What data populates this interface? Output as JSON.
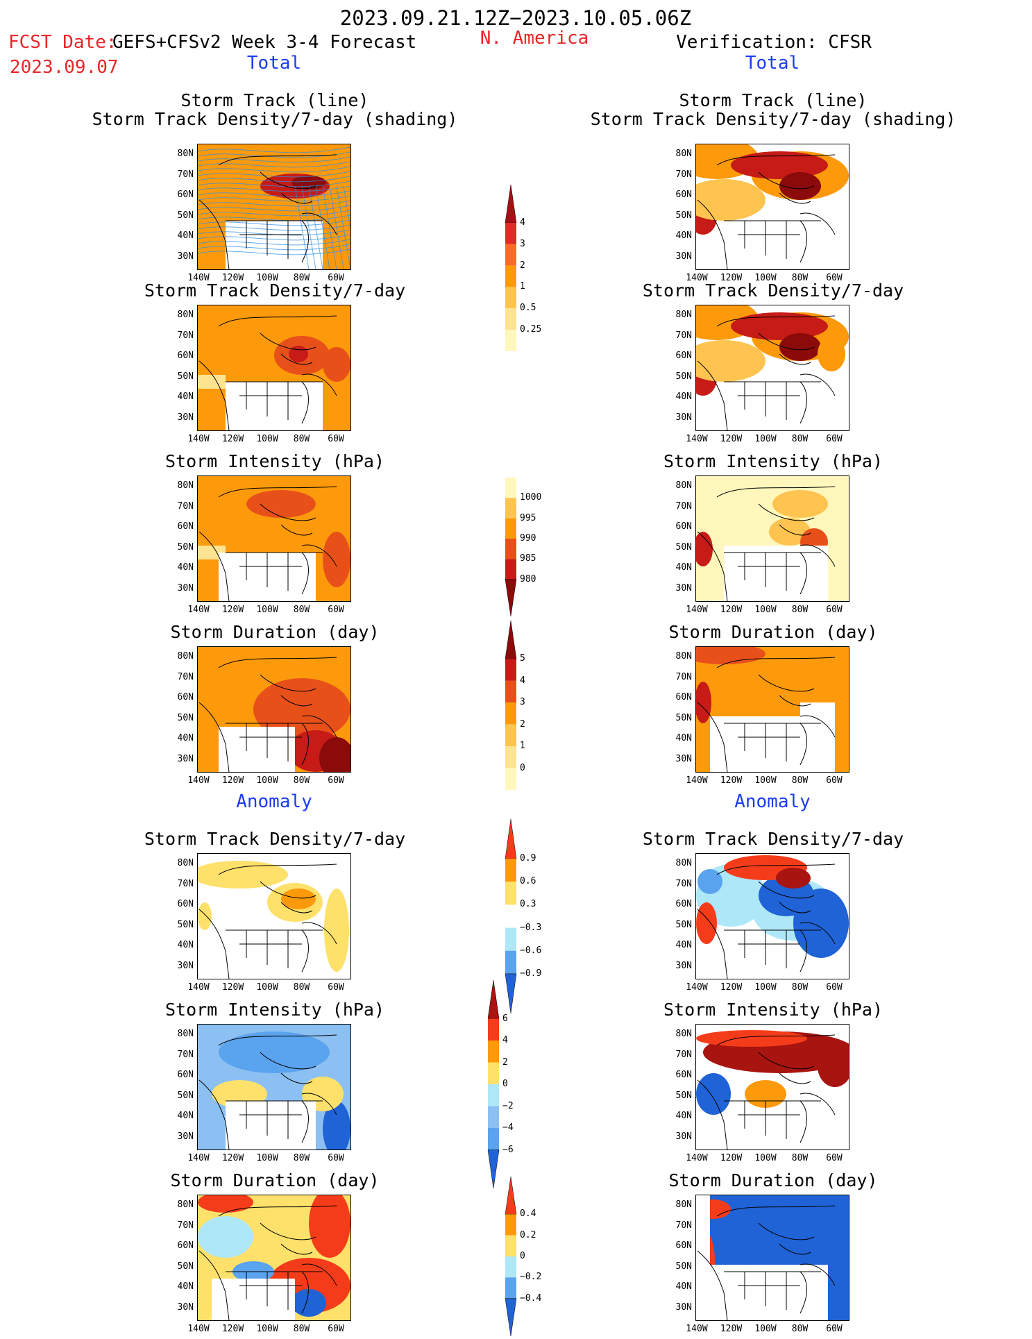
{
  "header": {
    "date_range": "2023.09.21.12Z−2023.10.05.06Z",
    "fcst_label": "FCST Date:",
    "fcst_model": "GEFS+CFSv2 Week 3-4 Forecast",
    "fcst_date": "2023.09.07",
    "region": "N. America",
    "verification": "Verification: CFSR",
    "total_left": "Total",
    "total_right": "Total",
    "anomaly_left": "Anomaly",
    "anomaly_right": "Anomaly"
  },
  "axes": {
    "lat_labels": [
      "80N",
      "70N",
      "60N",
      "50N",
      "40N",
      "30N"
    ],
    "lon_labels": [
      "140W",
      "120W",
      "100W",
      "80W",
      "60W"
    ]
  },
  "panels": [
    {
      "id": "track-total-fcst",
      "title1": "Storm Track (line)",
      "title2": "Storm Track Density/7-day (shading)",
      "column": "left"
    },
    {
      "id": "track-total-ver",
      "title1": "Storm Track (line)",
      "title2": "Storm Track Density/7-day (shading)",
      "column": "right"
    },
    {
      "id": "density-total-fcst",
      "title": "Storm Track Density/7-day",
      "column": "left"
    },
    {
      "id": "density-total-ver",
      "title": "Storm Track Density/7-day",
      "column": "right"
    },
    {
      "id": "intensity-total-fcst",
      "title": "Storm Intensity (hPa)",
      "column": "left"
    },
    {
      "id": "intensity-total-ver",
      "title": "Storm Intensity (hPa)",
      "column": "right"
    },
    {
      "id": "duration-total-fcst",
      "title": "Storm Duration (day)",
      "column": "left"
    },
    {
      "id": "duration-total-ver",
      "title": "Storm Duration (day)",
      "column": "right"
    },
    {
      "id": "density-anom-fcst",
      "title": "Storm Track Density/7-day",
      "column": "left"
    },
    {
      "id": "density-anom-ver",
      "title": "Storm Track Density/7-day",
      "column": "right"
    },
    {
      "id": "intensity-anom-fcst",
      "title": "Storm Intensity (hPa)",
      "column": "left"
    },
    {
      "id": "intensity-anom-ver",
      "title": "Storm Intensity (hPa)",
      "column": "right"
    },
    {
      "id": "duration-anom-fcst",
      "title": "Storm Duration (day)",
      "column": "left"
    },
    {
      "id": "duration-anom-ver",
      "title": "Storm Duration (day)",
      "column": "right"
    }
  ],
  "colorbars": [
    {
      "id": "cb-density",
      "labels": [
        "4",
        "3",
        "2",
        "1",
        "0.5",
        "0.25"
      ],
      "colors": [
        "#a50f15",
        "#de2d26",
        "#fc6a2a",
        "#fd9a0c",
        "#fec44f",
        "#fee391",
        "#fff7bc"
      ]
    },
    {
      "id": "cb-intensity",
      "labels": [
        "1000",
        "995",
        "990",
        "985",
        "980"
      ],
      "colors": [
        "#fff7bc",
        "#fec44f",
        "#fd9a0c",
        "#e8501a",
        "#c61b16",
        "#8b0a0a"
      ]
    },
    {
      "id": "cb-duration",
      "labels": [
        "5",
        "4",
        "3",
        "2",
        "1",
        "0"
      ],
      "colors": [
        "#8b0a0a",
        "#c61b16",
        "#e8501a",
        "#fd9a0c",
        "#fec44f",
        "#fee391",
        "#fff7bc"
      ]
    },
    {
      "id": "cb-density-anom",
      "labels": [
        "0.9",
        "0.6",
        "0.3",
        "−0.3",
        "−0.6",
        "−0.9"
      ],
      "colors": [
        "#f53c1a",
        "#fd9a0c",
        "#fee16b",
        "#ffffff",
        "#aee7f8",
        "#5aa3ee",
        "#1f63d6"
      ]
    },
    {
      "id": "cb-intensity-anom",
      "labels": [
        "6",
        "4",
        "2",
        "0",
        "−2",
        "−4",
        "−6"
      ],
      "colors": [
        "#a8140f",
        "#f53c1a",
        "#fd9a0c",
        "#fee16b",
        "#aee7f8",
        "#8cc0f2",
        "#5aa3ee",
        "#1f63d6"
      ]
    },
    {
      "id": "cb-duration-anom",
      "labels": [
        "0.4",
        "0.2",
        "0",
        "−0.2",
        "−0.4"
      ],
      "colors": [
        "#f53c1a",
        "#fd9a0c",
        "#fee16b",
        "#aee7f8",
        "#5aa3ee",
        "#1f63d6"
      ]
    }
  ],
  "colors": {
    "header_red": "#e8262a",
    "label_blue": "#1a3cf0",
    "track_line_blue": "#2b8fe6"
  }
}
